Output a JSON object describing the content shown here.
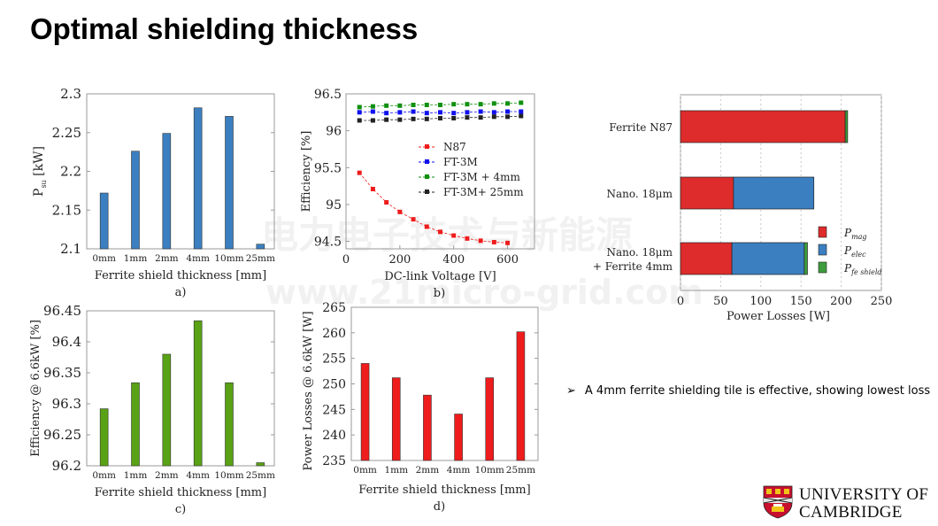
{
  "slide_title": "Optimal shielding thickness",
  "bullet": {
    "marker": "➢",
    "text": "A 4mm ferrite shielding tile is effective, showing lowest loss"
  },
  "logo": {
    "line1": "UNIVERSITY OF",
    "line2": "CAMBRIDGE"
  },
  "watermark": {
    "line1": "电力电子技术与新能源",
    "line2": "www.21micro-grid.com"
  },
  "colors": {
    "blue": "#3b7fc0",
    "green": "#5aa215",
    "red": "#ee1c1c",
    "dark_red": "#de2c2c",
    "axis": "#9a9a9a"
  },
  "chart_data": [
    {
      "id": "a",
      "type": "bar",
      "caption": "a)",
      "categories": [
        "0mm",
        "1mm",
        "2mm",
        "4mm",
        "10mm",
        "25mm"
      ],
      "values": [
        2.172,
        2.226,
        2.249,
        2.282,
        2.271,
        2.106
      ],
      "ylim": [
        2.1,
        2.3
      ],
      "yticks": [
        "2.1",
        "2.15",
        "2.2",
        "2.25",
        "2.3"
      ],
      "xlabel": "Ferrite shield thickness [mm]",
      "ylabel": "P",
      "ylabel_sub": "su",
      "ylabel_unit": " [kW]",
      "color": "#3b7fc0"
    },
    {
      "id": "b",
      "type": "line",
      "caption": "b)",
      "xlim": [
        0,
        700
      ],
      "ylim": [
        94.4,
        96.5
      ],
      "xticks": [
        "0",
        "200",
        "400",
        "600"
      ],
      "yticks": [
        "94.5",
        "95",
        "95.5",
        "96",
        "96.5"
      ],
      "xlabel": "DC-link Voltage [V]",
      "ylabel": "Efficiency   [%]",
      "x": [
        50,
        100,
        150,
        200,
        250,
        300,
        350,
        400,
        450,
        500,
        550,
        600,
        650
      ],
      "series": [
        {
          "name": "N87",
          "color": "#ee1c1c",
          "values": [
            95.43,
            95.21,
            95.03,
            94.9,
            94.8,
            94.7,
            94.63,
            94.58,
            94.54,
            94.51,
            94.49,
            94.48,
            null
          ]
        },
        {
          "name": "FT-3M",
          "color": "#1010ee",
          "values": [
            96.25,
            96.26,
            96.24,
            96.25,
            96.26,
            96.24,
            96.25,
            96.24,
            96.25,
            96.26,
            96.25,
            96.26,
            96.26
          ]
        },
        {
          "name": "FT-3M + 4mm",
          "color": "#109010",
          "values": [
            96.32,
            96.33,
            96.34,
            96.34,
            96.35,
            96.35,
            96.35,
            96.36,
            96.36,
            96.36,
            96.37,
            96.37,
            96.38
          ]
        },
        {
          "name": "FT-3M+ 25mm",
          "color": "#222222",
          "values": [
            96.14,
            96.14,
            96.15,
            96.15,
            96.16,
            96.16,
            96.17,
            96.17,
            96.18,
            96.18,
            96.19,
            96.19,
            96.2
          ]
        }
      ]
    },
    {
      "id": "c",
      "type": "bar",
      "caption": "c)",
      "categories": [
        "0mm",
        "1mm",
        "2mm",
        "4mm",
        "10mm",
        "25mm"
      ],
      "values": [
        96.292,
        96.334,
        96.38,
        96.434,
        96.334,
        96.205
      ],
      "ylim": [
        96.2,
        96.45
      ],
      "yticks": [
        "96.2",
        "96.25",
        "96.3",
        "96.35",
        "96.4",
        "96.45"
      ],
      "xlabel": "Ferrite shield thickness [mm]",
      "ylabel": "Efficiency @ 6.6kW [%]",
      "color": "#5aa215"
    },
    {
      "id": "d",
      "type": "bar",
      "caption": "d)",
      "categories": [
        "0mm",
        "1mm",
        "2mm",
        "4mm",
        "10mm",
        "25mm"
      ],
      "values": [
        254,
        251.2,
        247.8,
        244.1,
        251.2,
        260.2
      ],
      "ylim": [
        235,
        265
      ],
      "yticks": [
        "235",
        "240",
        "245",
        "250",
        "255",
        "260",
        "265"
      ],
      "xlabel": "Ferrite shield thickness [mm]",
      "ylabel": "Power Losses  @ 6.6kW [W]",
      "color": "#ee1c1c"
    },
    {
      "id": "e",
      "type": "bar",
      "orientation": "horizontal",
      "stacked": true,
      "categories": [
        "Ferrite N87",
        "Nano. 18μm",
        "Nano. 18μm\n+ Ferrite 4mm"
      ],
      "xlim": [
        0,
        250
      ],
      "xticks": [
        "0",
        "50",
        "100",
        "150",
        "200",
        "250"
      ],
      "xlabel": "Power Losses [W]",
      "series": [
        {
          "name": "P",
          "sub": "mag",
          "color": "#de2c2c",
          "values": [
            205,
            66,
            64
          ]
        },
        {
          "name": "P",
          "sub": "elec",
          "color": "#3b7fc0",
          "values": [
            0,
            100,
            90
          ]
        },
        {
          "name": "P",
          "sub": "fe shield",
          "color": "#3e9c3e",
          "values": [
            3,
            0,
            4
          ]
        }
      ]
    }
  ]
}
